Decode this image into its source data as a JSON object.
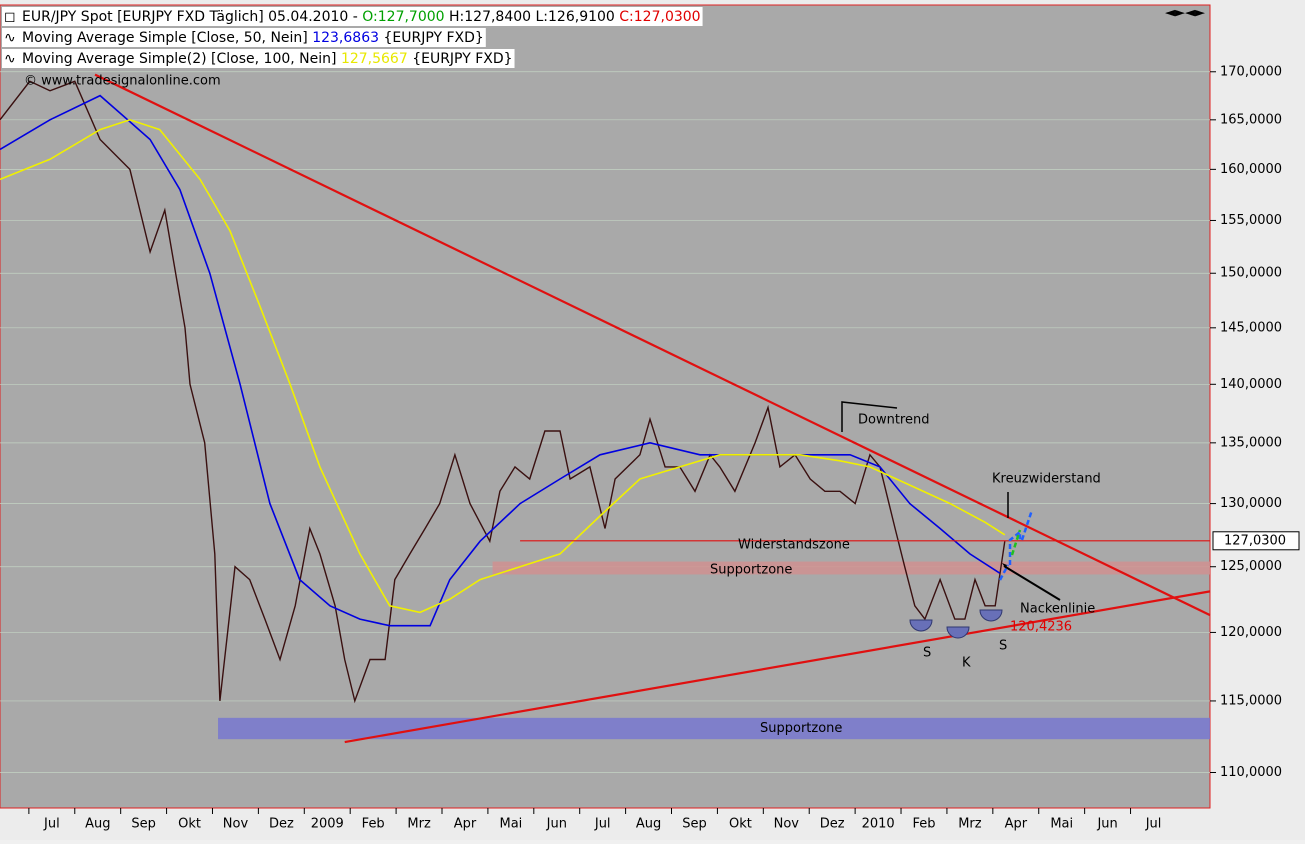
{
  "chart_data": {
    "type": "line",
    "log": true,
    "header": [
      [
        {
          "t": "EUR/JPY Spot [EURJPY FXD  Täglich] 05.04.2010 - ",
          "c": "#000"
        },
        {
          "t": "O:127,7000",
          "c": "#00a000"
        },
        {
          "t": " H:127,8400 L:126,9100 ",
          "c": "#000"
        },
        {
          "t": "C:127,0300",
          "c": "#e00000"
        }
      ],
      [
        {
          "t": "Moving Average Simple [Close, 50, Nein] ",
          "c": "#000"
        },
        {
          "t": "123,6863",
          "c": "#0000e0"
        },
        {
          "t": " {EURJPY FXD}",
          "c": "#000"
        }
      ],
      [
        {
          "t": "Moving Average Simple(2) [Close, 100, Nein] ",
          "c": "#000"
        },
        {
          "t": "127,5667",
          "c": "#e8e800"
        },
        {
          "t": " {EURJPY FXD}",
          "c": "#000"
        }
      ]
    ],
    "copyright": "© www.tradesignalonline.com",
    "currency": "¥",
    "xlim": [
      -0.63,
      25.73
    ],
    "ylim": [
      107.6,
      177.2
    ],
    "xticks": [
      {
        "value": 0.5,
        "label": "Jul"
      },
      {
        "value": 1.5,
        "label": "Aug"
      },
      {
        "value": 2.5,
        "label": "Sep"
      },
      {
        "value": 3.5,
        "label": "Okt"
      },
      {
        "value": 4.5,
        "label": "Nov"
      },
      {
        "value": 5.5,
        "label": "Dez"
      },
      {
        "value": 6.5,
        "label": "2009"
      },
      {
        "value": 7.5,
        "label": "Feb"
      },
      {
        "value": 8.5,
        "label": "Mrz"
      },
      {
        "value": 9.5,
        "label": "Apr"
      },
      {
        "value": 10.5,
        "label": "Mai"
      },
      {
        "value": 11.5,
        "label": "Jun"
      },
      {
        "value": 12.5,
        "label": "Jul"
      },
      {
        "value": 13.5,
        "label": "Aug"
      },
      {
        "value": 14.5,
        "label": "Sep"
      },
      {
        "value": 15.5,
        "label": "Okt"
      },
      {
        "value": 16.5,
        "label": "Nov"
      },
      {
        "value": 17.5,
        "label": "Dez"
      },
      {
        "value": 18.5,
        "label": "2010"
      },
      {
        "value": 19.5,
        "label": "Feb"
      },
      {
        "value": 20.5,
        "label": "Mrz"
      },
      {
        "value": 21.5,
        "label": "Apr"
      },
      {
        "value": 22.5,
        "label": "Mai"
      },
      {
        "value": 23.5,
        "label": "Jun"
      },
      {
        "value": 24.5,
        "label": "Jul"
      }
    ],
    "yticks": [
      {
        "value": 110,
        "label": "110,0000"
      },
      {
        "value": 115,
        "label": "115,0000"
      },
      {
        "value": 120,
        "label": "120,0000"
      },
      {
        "value": 125,
        "label": "125,0000"
      },
      {
        "value": 130,
        "label": "130,0000"
      },
      {
        "value": 135,
        "label": "135,0000"
      },
      {
        "value": 140,
        "label": "140,0000"
      },
      {
        "value": 145,
        "label": "145,0000"
      },
      {
        "value": 150,
        "label": "150,0000"
      },
      {
        "value": 155,
        "label": "155,0000"
      },
      {
        "value": 160,
        "label": "160,0000"
      },
      {
        "value": 165,
        "label": "165,0000"
      },
      {
        "value": 170,
        "label": "170,0000"
      }
    ],
    "zones": [
      {
        "label": "Supportzone",
        "from": 112.3,
        "to": 113.8,
        "start": 4.12,
        "color": "#7878d0"
      },
      {
        "label": "Supportzone",
        "from": 124.4,
        "to": 125.4,
        "start": 10.1,
        "color": "#d09090"
      }
    ],
    "trendlines": [
      {
        "x": [
          1.44,
          25.73
        ],
        "y": [
          169.7,
          121.3
        ],
        "color": "#e01010"
      },
      {
        "x": [
          6.88,
          25.73
        ],
        "y": [
          112.1,
          123.1
        ],
        "color": "#e01010"
      },
      {
        "x": [
          10.7,
          25.73
        ],
        "y": [
          127.03,
          127.03
        ],
        "color": "#e01010"
      }
    ],
    "series": [
      {
        "name": "EUR/JPY",
        "color": "#3a1010",
        "x": [
          -0.63,
          0.02,
          0.46,
          1.0,
          1.55,
          2.2,
          2.64,
          2.96,
          3.4,
          3.51,
          3.83,
          4.05,
          4.16,
          4.49,
          4.81,
          5.14,
          5.47,
          5.8,
          6.12,
          6.34,
          6.67,
          6.88,
          7.1,
          7.43,
          7.76,
          7.97,
          8.3,
          8.63,
          8.95,
          9.28,
          9.61,
          10.04,
          10.26,
          10.59,
          10.91,
          11.24,
          11.57,
          11.79,
          12.22,
          12.55,
          12.77,
          13.31,
          13.53,
          13.86,
          14.18,
          14.51,
          14.84,
          15.05,
          15.38,
          15.82,
          16.1,
          16.36,
          16.69,
          17.02,
          17.34,
          17.67,
          18.0,
          18.32,
          18.54,
          18.87,
          19.08,
          19.3,
          19.52,
          19.85,
          20.17,
          20.39,
          20.61,
          20.83,
          21.05,
          21.26
        ],
        "values": [
          165,
          169,
          168,
          169,
          163,
          160,
          152,
          156,
          145,
          140,
          135,
          126,
          115,
          125,
          124,
          121,
          118,
          122,
          128,
          126,
          122,
          118,
          115,
          118,
          118,
          124,
          126,
          128,
          130,
          134,
          130,
          127,
          131,
          133,
          132,
          136,
          136,
          132,
          133,
          128,
          132,
          134,
          137,
          133,
          133,
          131,
          134,
          133,
          131,
          135,
          138,
          133,
          134,
          132,
          131,
          131,
          130,
          134,
          133,
          128,
          125,
          122,
          121,
          124,
          121,
          121,
          124,
          122,
          122,
          127
        ]
      },
      {
        "name": "Moving Average Simple [Close, 50, Nein]",
        "color": "#0000e0",
        "x": [
          -0.63,
          0.46,
          1.55,
          2.64,
          3.29,
          3.94,
          4.6,
          5.25,
          5.9,
          6.56,
          7.21,
          7.86,
          8.74,
          9.17,
          9.83,
          10.7,
          11.57,
          12.44,
          13.53,
          14.62,
          15.71,
          16.8,
          17.89,
          18.54,
          19.19,
          19.85,
          20.5,
          21.15
        ],
        "values": [
          162,
          165,
          167.5,
          163,
          158,
          150,
          140,
          130,
          124,
          122,
          121,
          120.5,
          120.5,
          124,
          127,
          130,
          132,
          134,
          135,
          134,
          134,
          134,
          134,
          133,
          130,
          128,
          126,
          124.5
        ]
      },
      {
        "name": "Moving Average Simple(2) [Close, 100, Nein]",
        "color": "#f0f000",
        "x": [
          -0.63,
          0.46,
          1.55,
          2.2,
          2.85,
          3.73,
          4.38,
          5.03,
          5.69,
          6.34,
          7.21,
          7.86,
          8.52,
          9.17,
          9.83,
          10.7,
          11.57,
          12.44,
          13.31,
          14.18,
          15.05,
          15.93,
          16.8,
          17.67,
          18.32,
          19.19,
          20.07,
          20.83,
          21.26
        ],
        "values": [
          159,
          161,
          164,
          165,
          164,
          159,
          154,
          147,
          140,
          133,
          126,
          122,
          121.5,
          122.5,
          124,
          125,
          126,
          129,
          132,
          133,
          134,
          134,
          134,
          133.5,
          133,
          131.5,
          130,
          128.5,
          127.5
        ]
      }
    ],
    "last_price": {
      "value": 127.03,
      "label": "127,0300"
    },
    "low_label": {
      "value": 120.4236,
      "label": "120,4236"
    },
    "annotations": [
      "Downtrend",
      "Kreuzwiderstand",
      "Widerstandszone",
      "Nackenlinie",
      "S",
      "K",
      "S"
    ]
  }
}
